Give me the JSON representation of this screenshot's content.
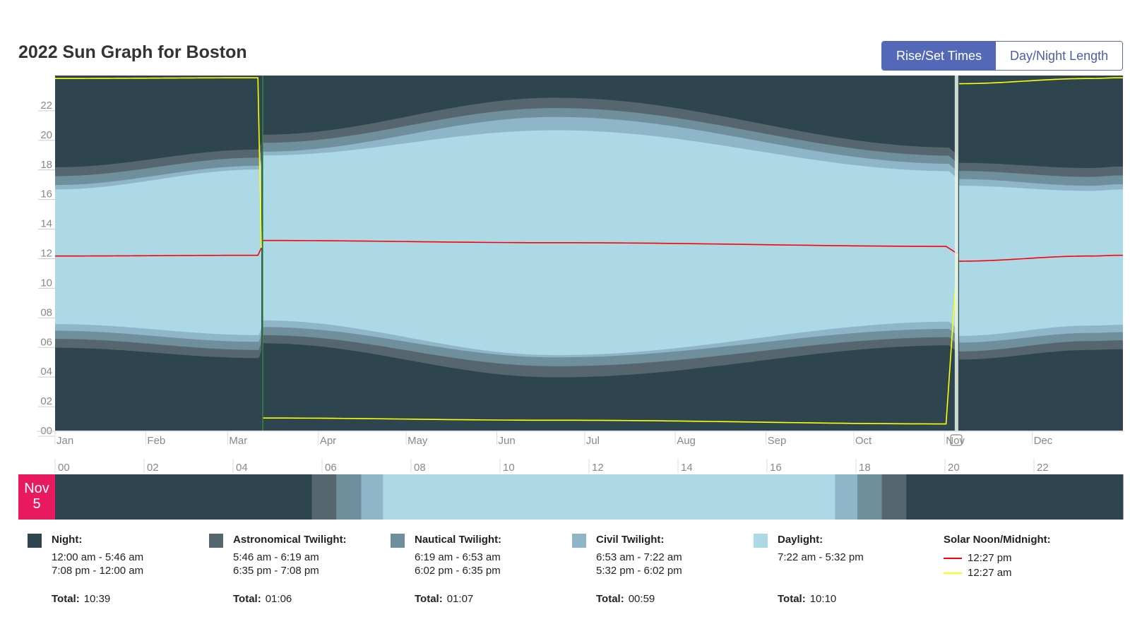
{
  "header": {
    "title": "2022 Sun Graph for Boston",
    "tab_active": "Rise/Set Times",
    "tab_inactive": "Day/Night Length"
  },
  "colors": {
    "night": "#2e444e",
    "astronomical": "#56666f",
    "nautical": "#6f8f9c",
    "civil": "#8fb6c8",
    "daylight": "#add8e6",
    "solar_noon": "#ff0000",
    "solar_midnight": "#ffff00",
    "day_marker": "#e8195f",
    "dst_line": "#2e9a3a",
    "today_line": "#e8f4e8"
  },
  "chart_data": {
    "type": "area",
    "title": "2022 Sun Graph for Boston",
    "ylim": [
      0,
      24
    ],
    "y_ticks": [
      "00",
      "02",
      "04",
      "06",
      "08",
      "10",
      "12",
      "14",
      "16",
      "18",
      "20",
      "22"
    ],
    "x_ticks": [
      "Jan",
      "Feb",
      "Mar",
      "Apr",
      "May",
      "Jun",
      "Jul",
      "Aug",
      "Sep",
      "Oct",
      "Nov",
      "Dec"
    ],
    "dst_period": [
      "2022-03-13",
      "2022-11-06"
    ],
    "current_day": "2022-11-05",
    "x": [
      "2022-01-01",
      "2022-03-12",
      "2022-03-13",
      "2022-06-21",
      "2022-11-05",
      "2022-11-06",
      "2022-12-21",
      "2022-12-31"
    ],
    "series": [
      {
        "name": "Astronomical Twilight",
        "start": [
          5.6,
          4.9,
          5.9,
          3.6,
          5.77,
          4.8,
          5.45,
          5.5
        ],
        "end": [
          17.8,
          19.0,
          20.0,
          22.5,
          19.13,
          18.1,
          17.75,
          17.85
        ]
      },
      {
        "name": "Nautical Twilight",
        "start": [
          6.2,
          5.45,
          6.45,
          4.35,
          6.32,
          5.35,
          6.05,
          6.1
        ],
        "end": [
          17.2,
          18.45,
          19.45,
          21.8,
          18.58,
          17.55,
          17.15,
          17.25
        ]
      },
      {
        "name": "Civil Twilight",
        "start": [
          6.75,
          6.0,
          7.0,
          4.95,
          6.88,
          5.95,
          6.6,
          6.65
        ],
        "end": [
          16.6,
          17.9,
          18.85,
          21.2,
          18.03,
          17.0,
          16.55,
          16.65
        ]
      },
      {
        "name": "Daylight",
        "start": [
          7.2,
          6.45,
          7.45,
          5.1,
          7.37,
          6.4,
          7.1,
          7.15
        ],
        "end": [
          16.3,
          17.65,
          18.6,
          20.3,
          17.53,
          16.55,
          16.2,
          16.3
        ]
      }
    ],
    "solar_noon": [
      11.8,
      11.85,
      12.85,
      12.7,
      12.45,
      11.45,
      11.8,
      11.85
    ],
    "solar_midnight": [
      23.8,
      23.85,
      0.85,
      0.7,
      0.45,
      23.45,
      23.8,
      23.85
    ]
  },
  "timeline": {
    "hour_ticks": [
      "00",
      "02",
      "04",
      "06",
      "08",
      "10",
      "12",
      "14",
      "16",
      "18",
      "20",
      "22"
    ],
    "day_month": "Nov",
    "day_number": "5",
    "segments": [
      {
        "phase": "night",
        "start": 0,
        "end": 5.77
      },
      {
        "phase": "astronomical",
        "start": 5.77,
        "end": 6.32
      },
      {
        "phase": "nautical",
        "start": 6.32,
        "end": 6.88
      },
      {
        "phase": "civil",
        "start": 6.88,
        "end": 7.37
      },
      {
        "phase": "daylight",
        "start": 7.37,
        "end": 17.53
      },
      {
        "phase": "civil",
        "start": 17.53,
        "end": 18.03
      },
      {
        "phase": "nautical",
        "start": 18.03,
        "end": 18.58
      },
      {
        "phase": "astronomical",
        "start": 18.58,
        "end": 19.13
      },
      {
        "phase": "night",
        "start": 19.13,
        "end": 24
      }
    ]
  },
  "legend": {
    "night": {
      "label": "Night:",
      "line1": "12:00 am - 5:46 am",
      "line2": "7:08 pm - 12:00 am",
      "total_label": "Total:",
      "total": "10:39"
    },
    "astronomical": {
      "label": "Astronomical Twilight:",
      "line1": "5:46 am - 6:19 am",
      "line2": "6:35 pm - 7:08 pm",
      "total_label": "Total:",
      "total": "01:06"
    },
    "nautical": {
      "label": "Nautical Twilight:",
      "line1": "6:19 am - 6:53 am",
      "line2": "6:02 pm - 6:35 pm",
      "total_label": "Total:",
      "total": "01:07"
    },
    "civil": {
      "label": "Civil Twilight:",
      "line1": "6:53 am - 7:22 am",
      "line2": "5:32 pm - 6:02 pm",
      "total_label": "Total:",
      "total": "00:59"
    },
    "daylight": {
      "label": "Daylight:",
      "line1": "7:22 am - 5:32 pm",
      "total_label": "Total:",
      "total": "10:10"
    },
    "solar": {
      "label": "Solar Noon/Midnight:",
      "noon": "12:27 pm",
      "midnight": "12:27 am"
    }
  }
}
